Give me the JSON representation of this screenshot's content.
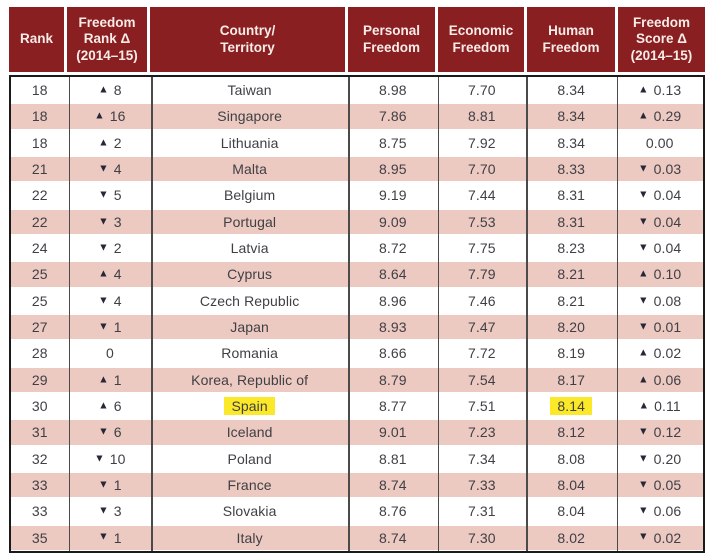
{
  "table": {
    "columns": [
      {
        "id": "rank",
        "label": "Rank"
      },
      {
        "id": "rank_change",
        "label": "Freedom\nRank Δ\n(2014–15)"
      },
      {
        "id": "country",
        "label": "Country/\nTerritory"
      },
      {
        "id": "personal",
        "label": "Personal\nFreedom"
      },
      {
        "id": "economic",
        "label": "Economic\nFreedom"
      },
      {
        "id": "human",
        "label": "Human\nFreedom"
      },
      {
        "id": "score_change",
        "label": "Freedom\nScore Δ\n(2014–15)"
      }
    ],
    "rows": [
      {
        "rank": "18",
        "rank_change": {
          "dir": "up",
          "value": "8"
        },
        "country": "Taiwan",
        "personal": "8.98",
        "economic": "7.70",
        "human": "8.34",
        "score_change": {
          "dir": "up",
          "value": "0.13"
        },
        "highlights": []
      },
      {
        "rank": "18",
        "rank_change": {
          "dir": "up",
          "value": "16"
        },
        "country": "Singapore",
        "personal": "7.86",
        "economic": "8.81",
        "human": "8.34",
        "score_change": {
          "dir": "up",
          "value": "0.29"
        },
        "highlights": []
      },
      {
        "rank": "18",
        "rank_change": {
          "dir": "up",
          "value": "2"
        },
        "country": "Lithuania",
        "personal": "8.75",
        "economic": "7.92",
        "human": "8.34",
        "score_change": {
          "dir": "none",
          "value": "0.00"
        },
        "highlights": []
      },
      {
        "rank": "21",
        "rank_change": {
          "dir": "down",
          "value": "4"
        },
        "country": "Malta",
        "personal": "8.95",
        "economic": "7.70",
        "human": "8.33",
        "score_change": {
          "dir": "down",
          "value": "0.03"
        },
        "highlights": []
      },
      {
        "rank": "22",
        "rank_change": {
          "dir": "down",
          "value": "5"
        },
        "country": "Belgium",
        "personal": "9.19",
        "economic": "7.44",
        "human": "8.31",
        "score_change": {
          "dir": "down",
          "value": "0.04"
        },
        "highlights": []
      },
      {
        "rank": "22",
        "rank_change": {
          "dir": "down",
          "value": "3"
        },
        "country": "Portugal",
        "personal": "9.09",
        "economic": "7.53",
        "human": "8.31",
        "score_change": {
          "dir": "down",
          "value": "0.04"
        },
        "highlights": []
      },
      {
        "rank": "24",
        "rank_change": {
          "dir": "down",
          "value": "2"
        },
        "country": "Latvia",
        "personal": "8.72",
        "economic": "7.75",
        "human": "8.23",
        "score_change": {
          "dir": "down",
          "value": "0.04"
        },
        "highlights": []
      },
      {
        "rank": "25",
        "rank_change": {
          "dir": "up",
          "value": "4"
        },
        "country": "Cyprus",
        "personal": "8.64",
        "economic": "7.79",
        "human": "8.21",
        "score_change": {
          "dir": "up",
          "value": "0.10"
        },
        "highlights": []
      },
      {
        "rank": "25",
        "rank_change": {
          "dir": "down",
          "value": "4"
        },
        "country": "Czech Republic",
        "personal": "8.96",
        "economic": "7.46",
        "human": "8.21",
        "score_change": {
          "dir": "down",
          "value": "0.08"
        },
        "highlights": []
      },
      {
        "rank": "27",
        "rank_change": {
          "dir": "down",
          "value": "1"
        },
        "country": "Japan",
        "personal": "8.93",
        "economic": "7.47",
        "human": "8.20",
        "score_change": {
          "dir": "down",
          "value": "0.01"
        },
        "highlights": []
      },
      {
        "rank": "28",
        "rank_change": {
          "dir": "none",
          "value": "0"
        },
        "country": "Romania",
        "personal": "8.66",
        "economic": "7.72",
        "human": "8.19",
        "score_change": {
          "dir": "up",
          "value": "0.02"
        },
        "highlights": []
      },
      {
        "rank": "29",
        "rank_change": {
          "dir": "up",
          "value": "1"
        },
        "country": "Korea, Republic of",
        "personal": "8.79",
        "economic": "7.54",
        "human": "8.17",
        "score_change": {
          "dir": "up",
          "value": "0.06"
        },
        "highlights": []
      },
      {
        "rank": "30",
        "rank_change": {
          "dir": "up",
          "value": "6"
        },
        "country": "Spain",
        "personal": "8.77",
        "economic": "7.51",
        "human": "8.14",
        "score_change": {
          "dir": "up",
          "value": "0.11"
        },
        "highlights": [
          "country",
          "human"
        ]
      },
      {
        "rank": "31",
        "rank_change": {
          "dir": "down",
          "value": "6"
        },
        "country": "Iceland",
        "personal": "9.01",
        "economic": "7.23",
        "human": "8.12",
        "score_change": {
          "dir": "down",
          "value": "0.12"
        },
        "highlights": []
      },
      {
        "rank": "32",
        "rank_change": {
          "dir": "down",
          "value": "10"
        },
        "country": "Poland",
        "personal": "8.81",
        "economic": "7.34",
        "human": "8.08",
        "score_change": {
          "dir": "down",
          "value": "0.20"
        },
        "highlights": []
      },
      {
        "rank": "33",
        "rank_change": {
          "dir": "down",
          "value": "1"
        },
        "country": "France",
        "personal": "8.74",
        "economic": "7.33",
        "human": "8.04",
        "score_change": {
          "dir": "down",
          "value": "0.05"
        },
        "highlights": []
      },
      {
        "rank": "33",
        "rank_change": {
          "dir": "down",
          "value": "3"
        },
        "country": "Slovakia",
        "personal": "8.76",
        "economic": "7.31",
        "human": "8.04",
        "score_change": {
          "dir": "down",
          "value": "0.06"
        },
        "highlights": []
      },
      {
        "rank": "35",
        "rank_change": {
          "dir": "down",
          "value": "1"
        },
        "country": "Italy",
        "personal": "8.74",
        "economic": "7.30",
        "human": "8.02",
        "score_change": {
          "dir": "down",
          "value": "0.02"
        },
        "highlights": []
      }
    ]
  },
  "icons": {
    "up-triangle": "▲",
    "down-triangle": "▼"
  },
  "colors": {
    "header_bg": "#8a1f22",
    "header_text": "#f8ece7",
    "stripe_pink": "#ecc9c1",
    "body_text": "#3f3f45",
    "triangle": "#272737",
    "grid_line": "#4a4a4a",
    "outer_border": "#1a1a1a",
    "highlight_yellow": "#fbe829"
  }
}
